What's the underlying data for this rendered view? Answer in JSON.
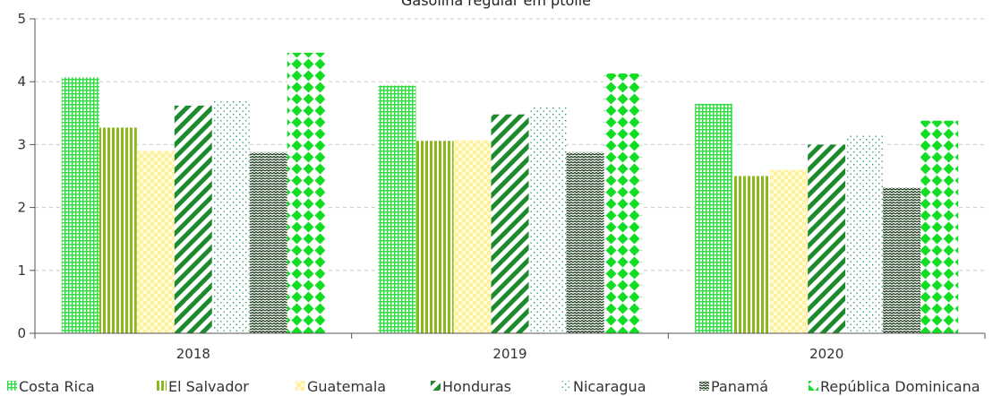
{
  "chart_data": {
    "type": "bar",
    "title": "Gasolina regular em ptolle",
    "xlabel": "",
    "ylabel": "",
    "categories": [
      "2018",
      "2019",
      "2020"
    ],
    "ylim": [
      0,
      5
    ],
    "yticks": [
      "0",
      "1",
      "2",
      "3",
      "4",
      "5"
    ],
    "grid": "horizontal-dashed",
    "legend": "bottom",
    "series": [
      {
        "name": "Costa Rica",
        "values": [
          4.07,
          3.94,
          3.65
        ],
        "color": "#33dd44",
        "pattern": "grid"
      },
      {
        "name": "El Salvador",
        "values": [
          3.27,
          3.06,
          2.5
        ],
        "color": "#8aba1a",
        "pattern": "vertical-stripes"
      },
      {
        "name": "Guatemala",
        "values": [
          2.9,
          3.07,
          2.6
        ],
        "color": "#fff5a8",
        "pattern": "checker"
      },
      {
        "name": "Honduras",
        "values": [
          3.62,
          3.48,
          3.0
        ],
        "color": "#1e8a2e",
        "pattern": "diagonal-stripes"
      },
      {
        "name": "Nicaragua",
        "values": [
          3.7,
          3.59,
          3.14
        ],
        "color": "#2f9a7a",
        "pattern": "dots"
      },
      {
        "name": "Panamá",
        "values": [
          2.88,
          2.88,
          2.32
        ],
        "color": "#1a3a1a",
        "pattern": "wave"
      },
      {
        "name": "República Dominicana",
        "values": [
          4.46,
          4.13,
          3.38
        ],
        "color": "#11dd22",
        "pattern": "diamonds"
      }
    ]
  }
}
